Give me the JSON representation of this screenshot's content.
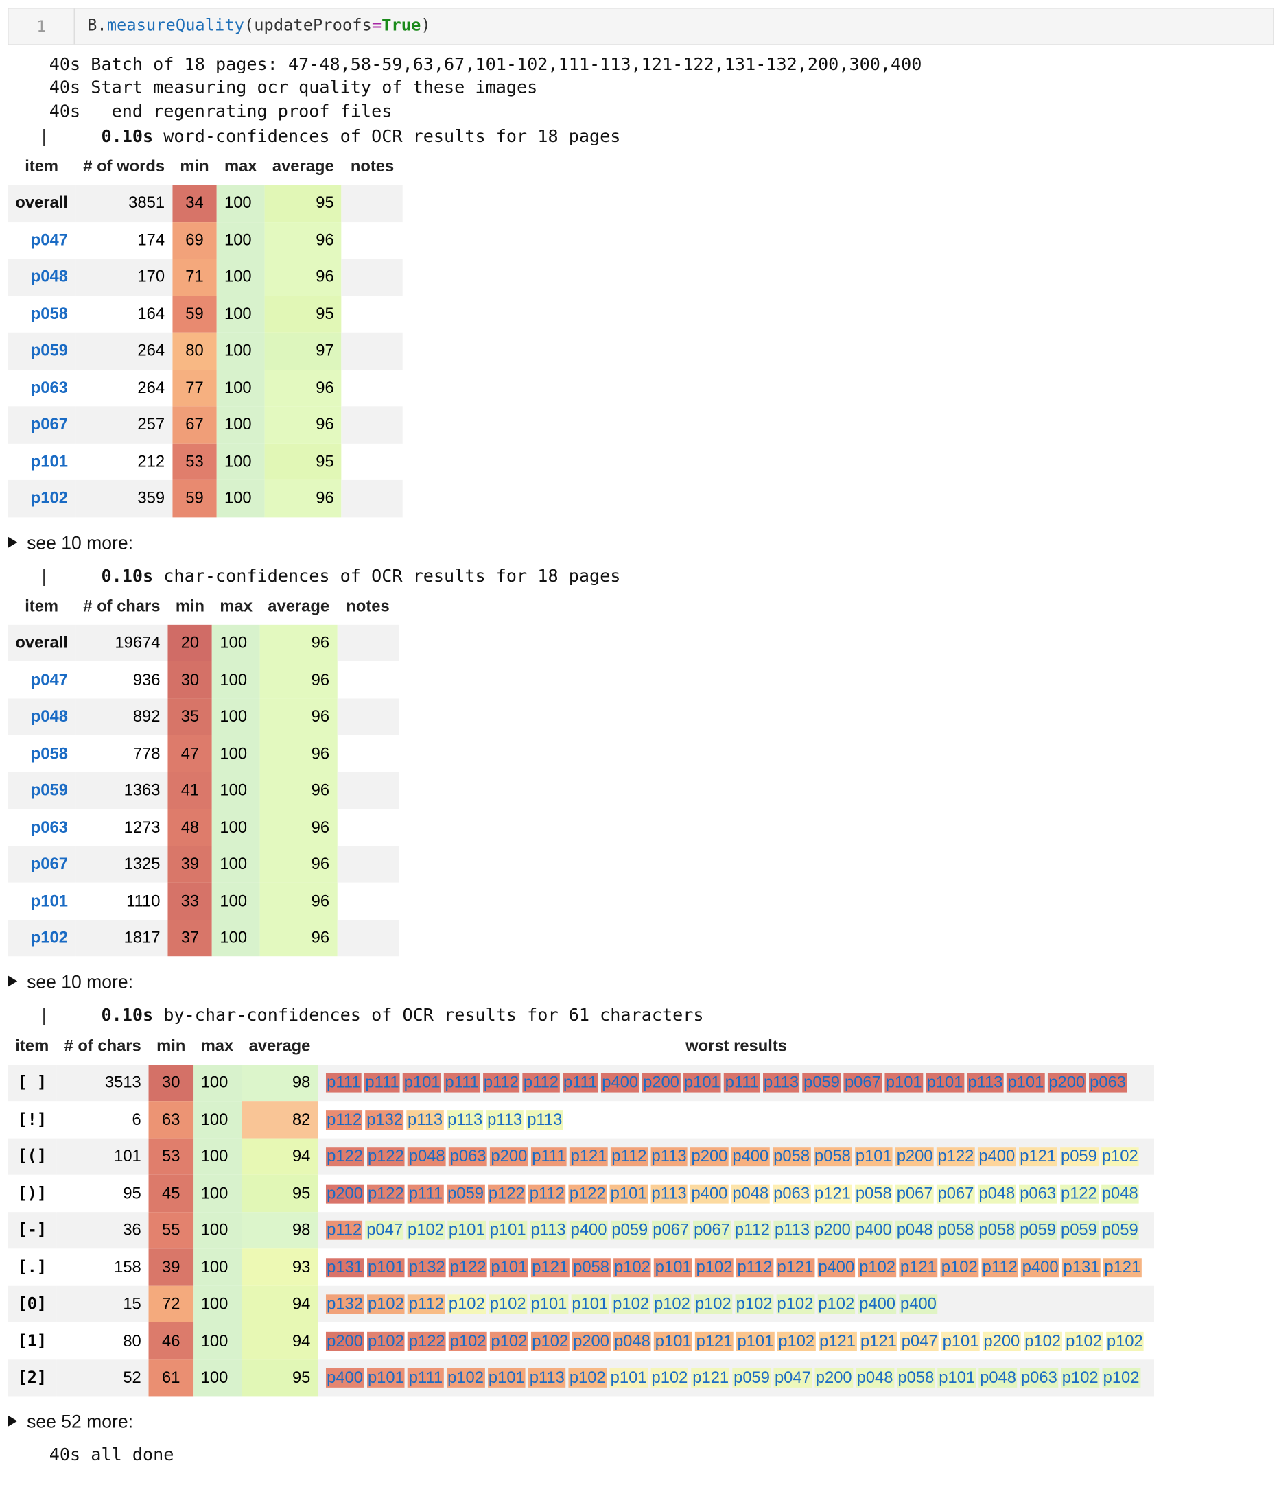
{
  "cell": {
    "prompt": "1",
    "code_obj": "B.",
    "code_func": "measureQuality",
    "code_open": "(updateProofs",
    "code_eq": "=",
    "code_val": "True",
    "code_close": ")"
  },
  "log": {
    "line1": "40s Batch of 18 pages: 47-48,58-59,63,67,101-102,111-113,121-122,131-132,200,300,400",
    "line2": "40s Start measuring ocr quality of these images",
    "line3": "40s   end regenrating proof files",
    "done": "40s all done"
  },
  "word_table": {
    "header_line_bar": "|",
    "header_line_time": "0.10s",
    "header_line_text": "word-confidences of OCR results for 18 pages",
    "columns": [
      "item",
      "# of words",
      "min",
      "max",
      "average",
      "notes"
    ],
    "rows": [
      {
        "item": "overall",
        "count": "3851",
        "min": "34",
        "max": "100",
        "avg": "95",
        "min_color": "#d77468",
        "avg_color": "#e1f7b6"
      },
      {
        "item": "p047",
        "count": "174",
        "min": "69",
        "max": "100",
        "avg": "96",
        "min_color": "#f2a27a",
        "avg_color": "#e3f9bf"
      },
      {
        "item": "p048",
        "count": "170",
        "min": "71",
        "max": "100",
        "avg": "96",
        "min_color": "#f4a87c",
        "avg_color": "#e3f9bf"
      },
      {
        "item": "p058",
        "count": "164",
        "min": "59",
        "max": "100",
        "avg": "95",
        "min_color": "#e88a70",
        "avg_color": "#e1f7b6"
      },
      {
        "item": "p059",
        "count": "264",
        "min": "80",
        "max": "100",
        "avg": "97",
        "min_color": "#f8b884",
        "avg_color": "#ddf6bd"
      },
      {
        "item": "p063",
        "count": "264",
        "min": "77",
        "max": "100",
        "avg": "96",
        "min_color": "#f6b080",
        "avg_color": "#e3f9bf"
      },
      {
        "item": "p067",
        "count": "257",
        "min": "67",
        "max": "100",
        "avg": "96",
        "min_color": "#f09e78",
        "avg_color": "#e3f9bf"
      },
      {
        "item": "p101",
        "count": "212",
        "min": "53",
        "max": "100",
        "avg": "95",
        "min_color": "#e07e6c",
        "avg_color": "#e1f7b6"
      },
      {
        "item": "p102",
        "count": "359",
        "min": "59",
        "max": "100",
        "avg": "96",
        "min_color": "#e88a70",
        "avg_color": "#e3f9bf"
      }
    ],
    "max_color": "#d8f2cc",
    "more_label": "see 10 more:"
  },
  "char_table": {
    "header_line_bar": "|",
    "header_line_time": "0.10s",
    "header_line_text": "char-confidences of OCR results for 18 pages",
    "columns": [
      "item",
      "# of chars",
      "min",
      "max",
      "average",
      "notes"
    ],
    "rows": [
      {
        "item": "overall",
        "count": "19674",
        "min": "20",
        "max": "100",
        "avg": "96",
        "min_color": "#d06c66",
        "avg_color": "#e3f9bf"
      },
      {
        "item": "p047",
        "count": "936",
        "min": "30",
        "max": "100",
        "avg": "96",
        "min_color": "#d47167",
        "avg_color": "#e3f9bf"
      },
      {
        "item": "p048",
        "count": "892",
        "min": "35",
        "max": "100",
        "avg": "96",
        "min_color": "#d77568",
        "avg_color": "#e3f9bf"
      },
      {
        "item": "p058",
        "count": "778",
        "min": "47",
        "max": "100",
        "avg": "96",
        "min_color": "#dd7b6b",
        "avg_color": "#e3f9bf"
      },
      {
        "item": "p059",
        "count": "1363",
        "min": "41",
        "max": "100",
        "avg": "96",
        "min_color": "#da786a",
        "avg_color": "#e3f9bf"
      },
      {
        "item": "p063",
        "count": "1273",
        "min": "48",
        "max": "100",
        "avg": "96",
        "min_color": "#de7c6b",
        "avg_color": "#e3f9bf"
      },
      {
        "item": "p067",
        "count": "1325",
        "min": "39",
        "max": "100",
        "avg": "96",
        "min_color": "#d97769",
        "avg_color": "#e3f9bf"
      },
      {
        "item": "p101",
        "count": "1110",
        "min": "33",
        "max": "100",
        "avg": "96",
        "min_color": "#d67368",
        "avg_color": "#e3f9bf"
      },
      {
        "item": "p102",
        "count": "1817",
        "min": "37",
        "max": "100",
        "avg": "96",
        "min_color": "#d87669",
        "avg_color": "#e3f9bf"
      }
    ],
    "max_color": "#d8f2cc",
    "more_label": "see 10 more:"
  },
  "bychar_table": {
    "header_line_bar": "|",
    "header_line_time": "0.10s",
    "header_line_text": "by-char-confidences of OCR results for 61 characters",
    "columns": [
      "item",
      "# of chars",
      "min",
      "max",
      "average",
      "worst results"
    ],
    "rows": [
      {
        "item": "[ ]",
        "count": "3513",
        "min": "30",
        "max": "100",
        "avg": "98",
        "min_color": "#d47167",
        "avg_color": "#dcf5cb",
        "worst": [
          "p111",
          "p111",
          "p101",
          "p111",
          "p112",
          "p112",
          "p111",
          "p400",
          "p200",
          "p101",
          "p111",
          "p113",
          "p059",
          "p067",
          "p101",
          "p101",
          "p113",
          "p101",
          "p200",
          "p063"
        ],
        "worst_colors": [
          "#d9746a",
          "#d9746a",
          "#d9746a",
          "#d9746a",
          "#d9746a",
          "#d9746a",
          "#d9746a",
          "#d9746a",
          "#d9746a",
          "#d9746a",
          "#d9746a",
          "#d9746a",
          "#d9746a",
          "#d9746a",
          "#d9746a",
          "#d9746a",
          "#d9746a",
          "#d9746a",
          "#d9746a",
          "#d9746a"
        ]
      },
      {
        "item": "[!]",
        "count": "6",
        "min": "63",
        "max": "100",
        "avg": "82",
        "min_color": "#ec9474",
        "avg_color": "#f9c596",
        "worst": [
          "p112",
          "p132",
          "p113",
          "p113",
          "p113",
          "p113"
        ],
        "worst_colors": [
          "#e98c72",
          "#ec9676",
          "#f9d196",
          "#eef7b9",
          "#eef7b9",
          "#eef7b9"
        ]
      },
      {
        "item": "[(]",
        "count": "101",
        "min": "53",
        "max": "100",
        "avg": "94",
        "min_color": "#e07e6c",
        "avg_color": "#e7f8b4",
        "worst": [
          "p122",
          "p122",
          "p048",
          "p063",
          "p200",
          "p111",
          "p121",
          "p112",
          "p113",
          "p200",
          "p400",
          "p058",
          "p058",
          "p101",
          "p200",
          "p122",
          "p400",
          "p121",
          "p059",
          "p102"
        ],
        "worst_colors": [
          "#de7c6c",
          "#df7e6d",
          "#e5886f",
          "#e98d72",
          "#ec9474",
          "#ee9a77",
          "#f0a079",
          "#f1a37a",
          "#f3a87c",
          "#f4ac7e",
          "#f6b080",
          "#f8b683",
          "#f9ba86",
          "#fac08a",
          "#fbc78f",
          "#fccd94",
          "#fdd59c",
          "#fde0a4",
          "#fdeeb2",
          "#f8f6b8"
        ]
      },
      {
        "item": "[)]",
        "count": "95",
        "min": "45",
        "max": "100",
        "avg": "95",
        "min_color": "#dc7a6a",
        "avg_color": "#e1f7b6",
        "worst": [
          "p200",
          "p122",
          "p111",
          "p059",
          "p122",
          "p112",
          "p122",
          "p101",
          "p113",
          "p400",
          "p048",
          "p063",
          "p121",
          "p058",
          "p067",
          "p067",
          "p048",
          "p063",
          "p122",
          "p048"
        ],
        "worst_colors": [
          "#d9746a",
          "#e18270",
          "#e78a72",
          "#eb9375",
          "#ef9c78",
          "#f2a47b",
          "#f6b080",
          "#f9c08a",
          "#fbcf96",
          "#fcdaa0",
          "#fde4aa",
          "#feeeb4",
          "#fdf6ba",
          "#f8f8bc",
          "#f2f8bc",
          "#f0f8bc",
          "#eef8bc",
          "#ecf8bc",
          "#eaf8bc",
          "#e8f8bc"
        ]
      },
      {
        "item": "[-]",
        "count": "36",
        "min": "55",
        "max": "100",
        "avg": "98",
        "min_color": "#e3826e",
        "avg_color": "#dcf5cb",
        "worst": [
          "p112",
          "p047",
          "p102",
          "p101",
          "p101",
          "p113",
          "p400",
          "p059",
          "p067",
          "p067",
          "p112",
          "p113",
          "p200",
          "p400",
          "p048",
          "p058",
          "p058",
          "p059",
          "p059",
          "p059"
        ],
        "worst_colors": [
          "#eb9375",
          "#e6f6c0",
          "#e4f6c0",
          "#e4f6c0",
          "#e4f6c0",
          "#e4f6c0",
          "#e4f6c0",
          "#e2f5c2",
          "#e2f5c2",
          "#e2f5c2",
          "#e2f5c2",
          "#e0f4c4",
          "#e0f4c4",
          "#e0f4c4",
          "#e0f4c4",
          "#def3c6",
          "#def3c6",
          "#def3c6",
          "#def3c6",
          "#def3c6"
        ]
      },
      {
        "item": "[.]",
        "count": "158",
        "min": "39",
        "max": "100",
        "avg": "93",
        "min_color": "#d97769",
        "avg_color": "#edf9b4",
        "worst": [
          "p131",
          "p101",
          "p132",
          "p122",
          "p101",
          "p121",
          "p058",
          "p102",
          "p101",
          "p102",
          "p112",
          "p121",
          "p400",
          "p102",
          "p121",
          "p102",
          "p112",
          "p400",
          "p131",
          "p121"
        ],
        "worst_colors": [
          "#d9746a",
          "#df7e6d",
          "#e18270",
          "#e38470",
          "#e58671",
          "#e68872",
          "#e78a72",
          "#e98d73",
          "#ea9074",
          "#ec9475",
          "#ed9676",
          "#ee9a77",
          "#ef9d78",
          "#f0a079",
          "#f1a27a",
          "#f2a57b",
          "#f3a87c",
          "#f4ac7e",
          "#f5b07f",
          "#f6b482"
        ]
      },
      {
        "item": "[0]",
        "count": "15",
        "min": "72",
        "max": "100",
        "avg": "94",
        "min_color": "#f4aa7d",
        "avg_color": "#e7f8b4",
        "worst": [
          "p132",
          "p102",
          "p112",
          "p102",
          "p102",
          "p101",
          "p101",
          "p102",
          "p102",
          "p102",
          "p102",
          "p102",
          "p102",
          "p400",
          "p400"
        ],
        "worst_colors": [
          "#f1a27a",
          "#f4ac7e",
          "#f8bc86",
          "#f5f7b8",
          "#eef7bb",
          "#eaf7bd",
          "#e8f6bd",
          "#e6f6bf",
          "#e6f6bf",
          "#e4f5c0",
          "#e4f5c0",
          "#e4f5c0",
          "#e2f4c2",
          "#e0f4c4",
          "#e0f4c4"
        ]
      },
      {
        "item": "[1]",
        "count": "80",
        "min": "46",
        "max": "100",
        "avg": "94",
        "min_color": "#dc7b6b",
        "avg_color": "#e7f8b4",
        "worst": [
          "p200",
          "p102",
          "p122",
          "p102",
          "p102",
          "p102",
          "p200",
          "p048",
          "p101",
          "p121",
          "p101",
          "p102",
          "p121",
          "p121",
          "p047",
          "p101",
          "p200",
          "p102",
          "p102",
          "p102"
        ],
        "worst_colors": [
          "#da7769",
          "#e18270",
          "#e58671",
          "#e88b73",
          "#eb9274",
          "#ee9a77",
          "#f1a27a",
          "#f4ac7e",
          "#f7b482",
          "#f8bc86",
          "#fac48c",
          "#fbcc92",
          "#fcd49a",
          "#fddca2",
          "#fde4aa",
          "#fdecb2",
          "#fbf2b6",
          "#f8f4b8",
          "#f6f5b8",
          "#f4f6b8"
        ]
      },
      {
        "item": "[2]",
        "count": "52",
        "min": "61",
        "max": "100",
        "avg": "95",
        "min_color": "#ea8f72",
        "avg_color": "#e1f7b6",
        "worst": [
          "p400",
          "p101",
          "p111",
          "p102",
          "p101",
          "p113",
          "p102",
          "p101",
          "p102",
          "p121",
          "p059",
          "p047",
          "p200",
          "p048",
          "p058",
          "p101",
          "p048",
          "p063",
          "p102",
          "p102"
        ],
        "worst_colors": [
          "#e48670",
          "#ea9074",
          "#ed9676",
          "#f0a079",
          "#f2a67b",
          "#f4ac7e",
          "#f7b884",
          "#f8f3b8",
          "#f5f6b9",
          "#f2f7ba",
          "#eff7bb",
          "#edf7bb",
          "#ebf7bc",
          "#e9f7bc",
          "#e7f6bd",
          "#e5f6be",
          "#e3f5bf",
          "#e3f5bf",
          "#e1f5c0",
          "#e1f5c0"
        ]
      }
    ],
    "max_color": "#d8f2cc",
    "more_label": "see 52 more:"
  }
}
